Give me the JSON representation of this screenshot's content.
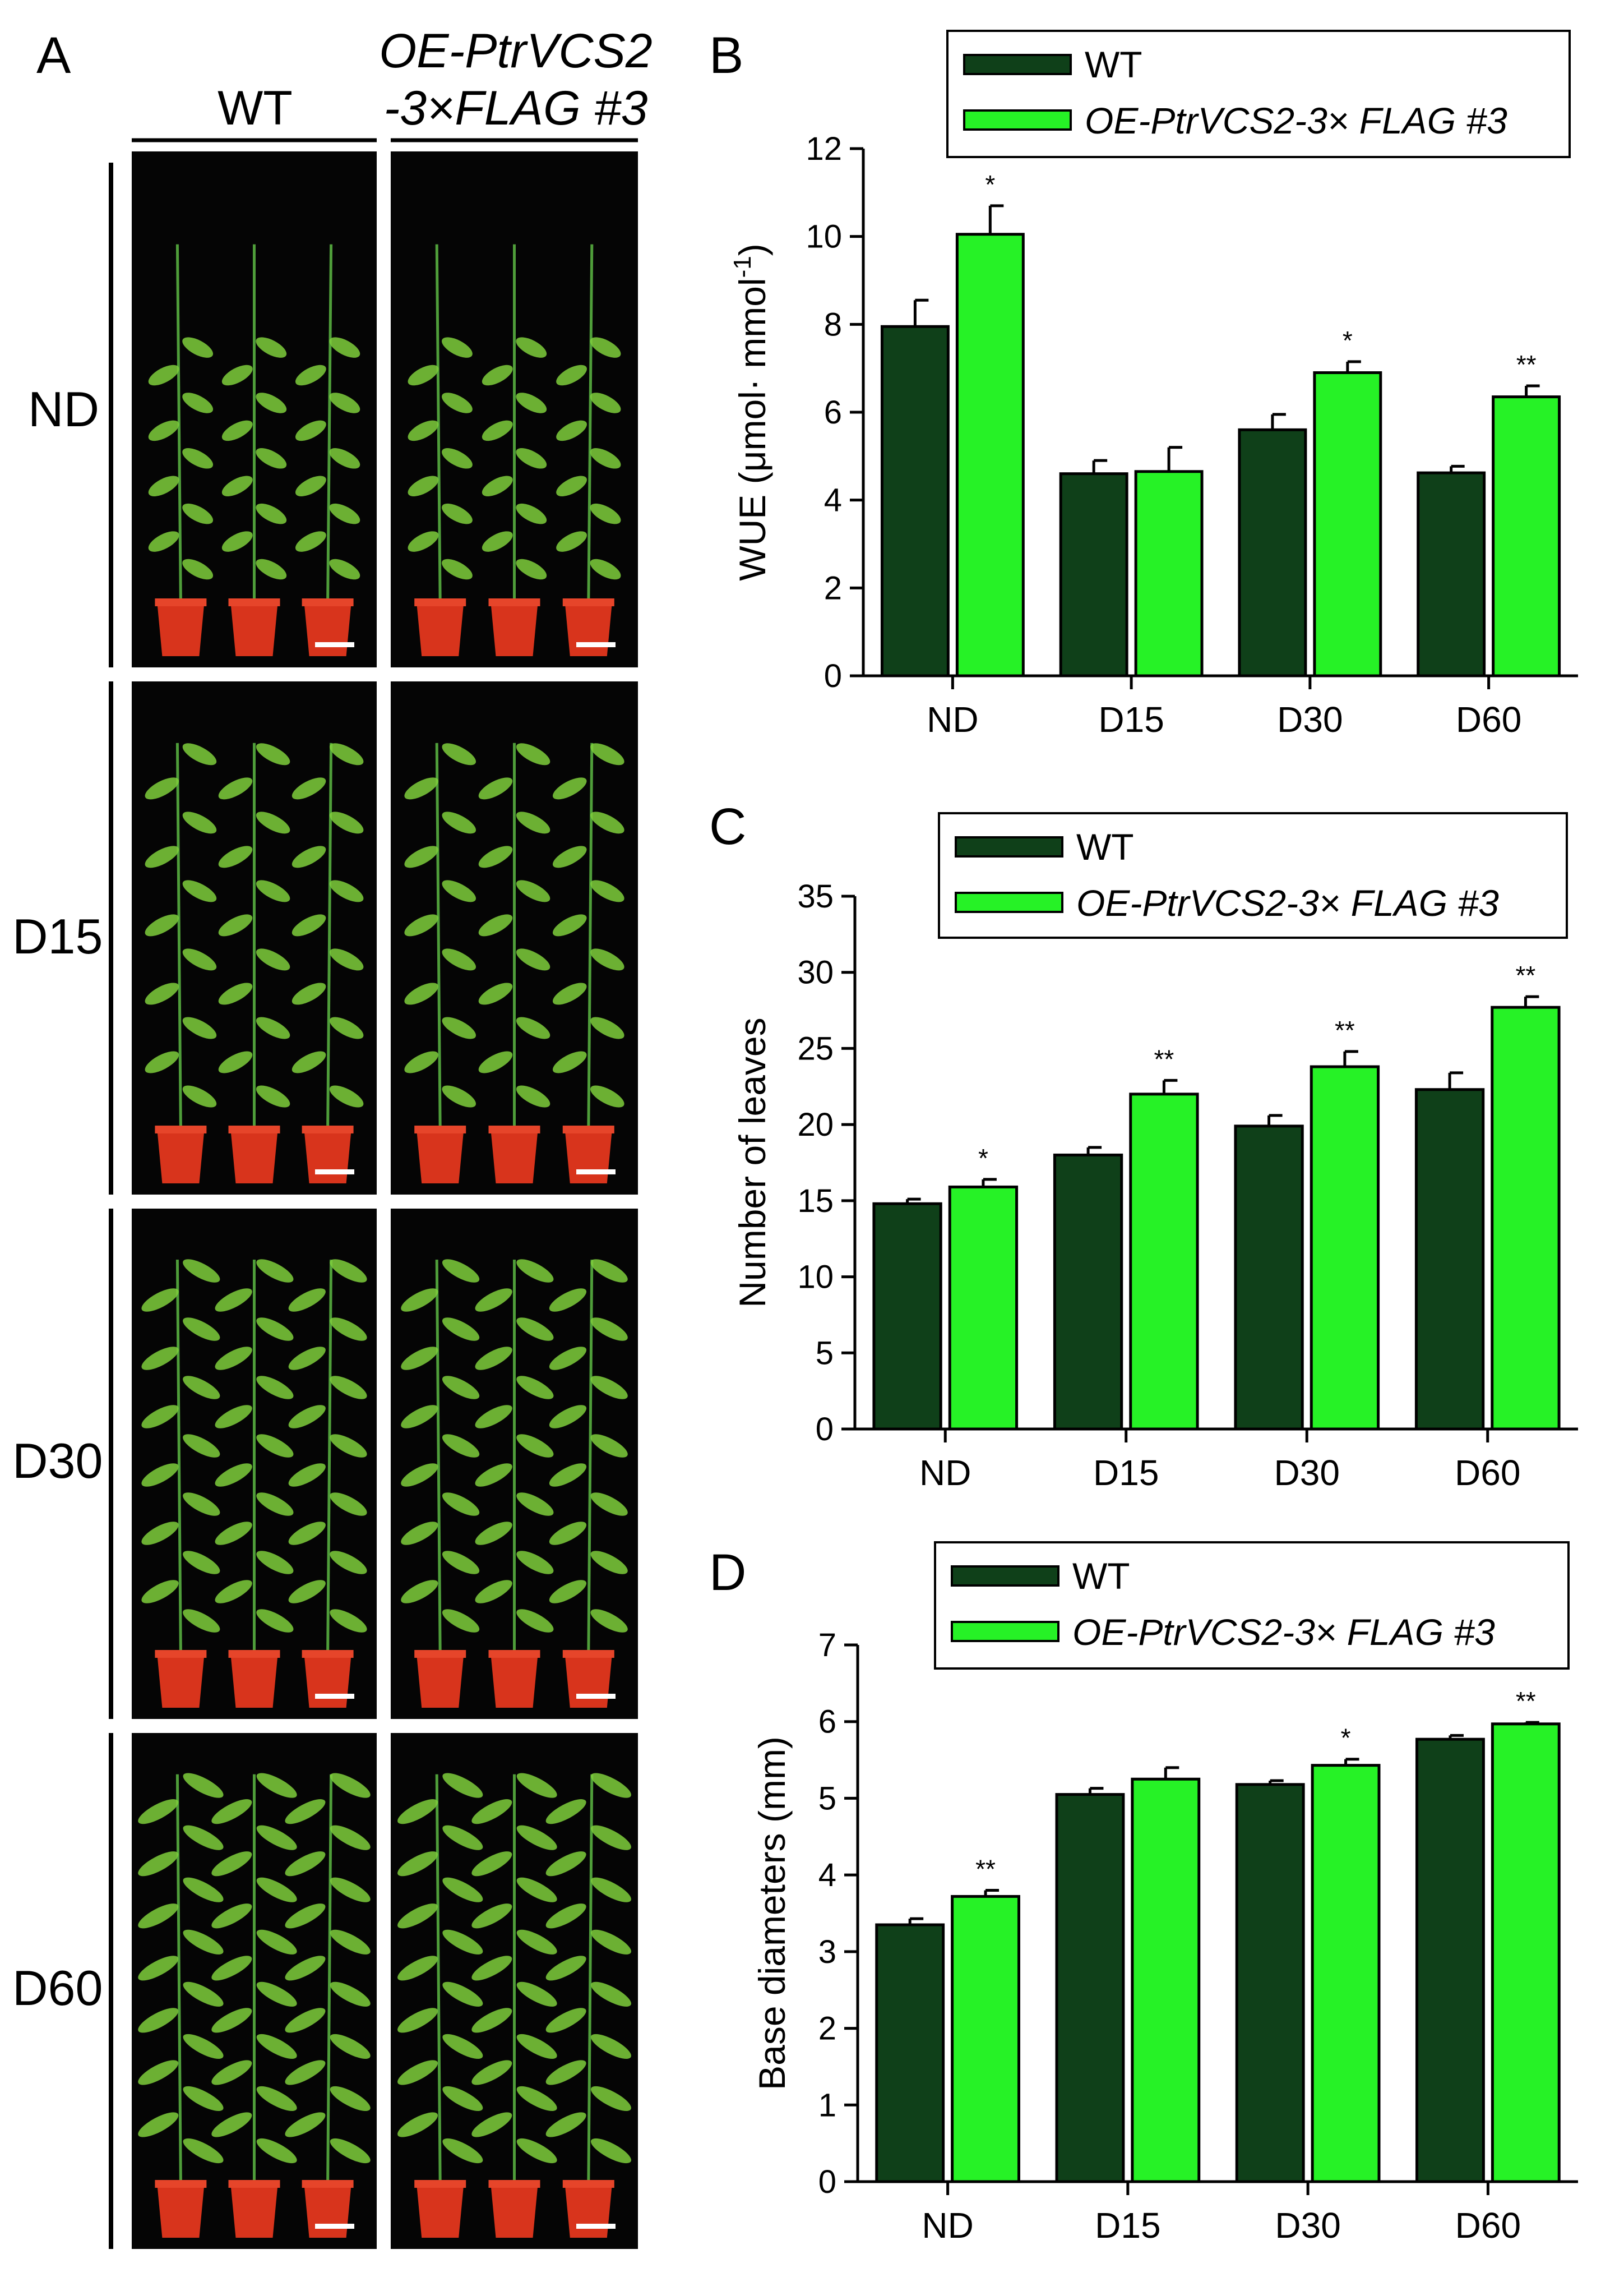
{
  "figure": {
    "panel_a": {
      "letter": "A",
      "col_wt": "WT",
      "col_oe_line1": "OE-PtrVCS2",
      "col_oe_line2": "-3×FLAG #3",
      "rows": [
        "ND",
        "D15",
        "D30",
        "D60"
      ]
    },
    "legend": {
      "wt": "WT",
      "oe": "OE-PtrVCS2-3× FLAG #3",
      "oe_regular": "OE-PtrVCS2-3×",
      "oe_italic_flag": "FLAG",
      "oe_suffix": " #3"
    },
    "colors": {
      "wt": "#0f4019",
      "oe": "#26f226",
      "photo_bg": "#050505",
      "pot": "#d8341c",
      "leaf": "#7fcf3c",
      "stem": "#4f9e3a"
    }
  },
  "chart_data": [
    {
      "panel": "B",
      "type": "bar",
      "categories": [
        "ND",
        "D15",
        "D30",
        "D60"
      ],
      "series": [
        {
          "name": "WT",
          "values": [
            7.95,
            4.6,
            5.6,
            4.62
          ],
          "errors": [
            0.6,
            0.3,
            0.35,
            0.15
          ],
          "sig": [
            "",
            "",
            "",
            ""
          ]
        },
        {
          "name": "OE-PtrVCS2-3× FLAG #3",
          "values": [
            10.05,
            4.65,
            6.9,
            6.35
          ],
          "errors": [
            0.65,
            0.55,
            0.25,
            0.25
          ],
          "sig": [
            "*",
            "",
            "*",
            "**"
          ]
        }
      ],
      "ylabel": "WUE (μmol· mmol",
      "ylabel_sup": "-1",
      "ylabel_close": ")",
      "ylim": [
        0,
        12
      ],
      "yticks": [
        "0",
        "2",
        "4",
        "6",
        "8",
        "10",
        "12"
      ]
    },
    {
      "panel": "C",
      "type": "bar",
      "categories": [
        "ND",
        "D15",
        "D30",
        "D60"
      ],
      "series": [
        {
          "name": "WT",
          "values": [
            14.8,
            18.0,
            19.9,
            22.3
          ],
          "errors": [
            0.3,
            0.5,
            0.7,
            1.1
          ],
          "sig": [
            "",
            "",
            "",
            ""
          ]
        },
        {
          "name": "OE-PtrVCS2-3× FLAG #3",
          "values": [
            15.9,
            22.0,
            23.8,
            27.7
          ],
          "errors": [
            0.5,
            0.9,
            1.0,
            0.7
          ],
          "sig": [
            "*",
            "**",
            "**",
            "**"
          ]
        }
      ],
      "ylabel": "Number of leaves",
      "ylim": [
        0,
        35
      ],
      "yticks": [
        "0",
        "5",
        "10",
        "15",
        "20",
        "25",
        "30",
        "35"
      ]
    },
    {
      "panel": "D",
      "type": "bar",
      "categories": [
        "ND",
        "D15",
        "D30",
        "D60"
      ],
      "series": [
        {
          "name": "WT",
          "values": [
            3.35,
            5.05,
            5.18,
            5.77
          ],
          "errors": [
            0.08,
            0.08,
            0.05,
            0.05
          ],
          "sig": [
            "",
            "",
            "",
            ""
          ]
        },
        {
          "name": "OE-PtrVCS2-3× FLAG #3",
          "values": [
            3.72,
            5.25,
            5.43,
            5.97
          ],
          "errors": [
            0.08,
            0.15,
            0.08,
            0.02
          ],
          "sig": [
            "**",
            "",
            "*",
            "**"
          ]
        }
      ],
      "ylabel": "Base diameters (mm)",
      "ylim": [
        0,
        7
      ],
      "yticks": [
        "0",
        "1",
        "2",
        "3",
        "4",
        "5",
        "6",
        "7"
      ]
    }
  ]
}
